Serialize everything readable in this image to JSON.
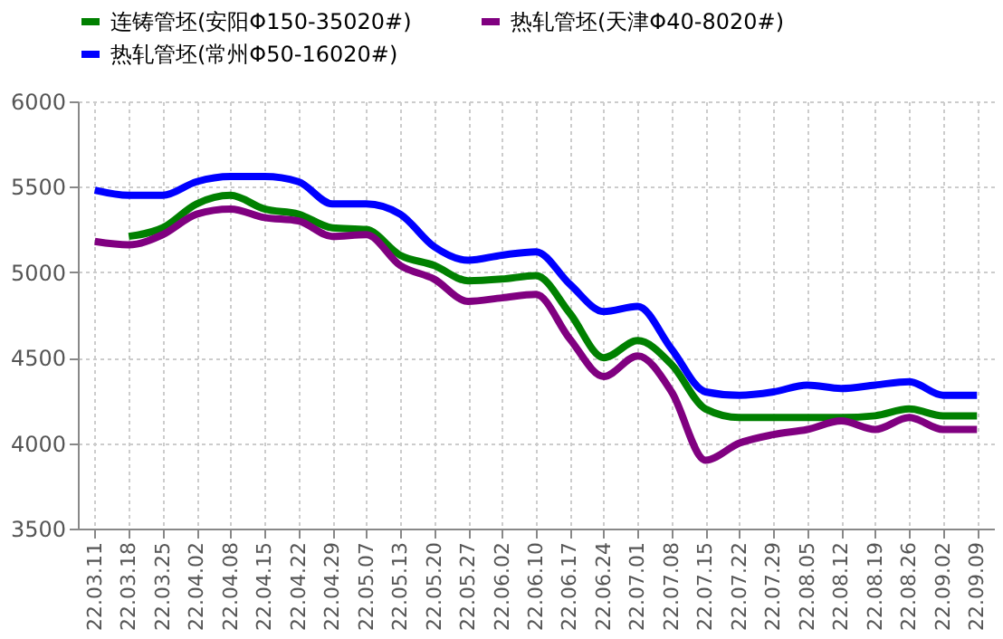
{
  "chart_data": {
    "type": "line",
    "categories": [
      "22.03.11",
      "22.03.18",
      "22.03.25",
      "22.04.02",
      "22.04.08",
      "22.04.15",
      "22.04.22",
      "22.04.29",
      "22.05.07",
      "22.05.13",
      "22.05.20",
      "22.05.27",
      "22.06.02",
      "22.06.10",
      "22.06.17",
      "22.06.24",
      "22.07.01",
      "22.07.08",
      "22.07.15",
      "22.07.22",
      "22.07.29",
      "22.08.05",
      "22.08.12",
      "22.08.19",
      "22.08.26",
      "22.09.02",
      "22.09.09"
    ],
    "series": [
      {
        "name": "连铸管坯(安阳Φ150-35020#)",
        "color": "#008000",
        "values": [
          null,
          5210,
          5260,
          5400,
          5450,
          5370,
          5340,
          5260,
          5250,
          5100,
          5040,
          4950,
          4960,
          4980,
          4760,
          4500,
          4600,
          4460,
          4200,
          4150,
          4150,
          4150,
          4150,
          4160,
          4200,
          4160,
          4160
        ]
      },
      {
        "name": "热轧管坯(天津Φ40-8020#)",
        "color": "#800080",
        "values": [
          5180,
          5160,
          5220,
          5340,
          5370,
          5320,
          5300,
          5210,
          5220,
          5040,
          4960,
          4830,
          4850,
          4870,
          4610,
          4390,
          4510,
          4300,
          3900,
          4000,
          4050,
          4080,
          4130,
          4080,
          4150,
          4080,
          4080
        ]
      },
      {
        "name": "热轧管坯(常州Φ50-16020#)",
        "color": "#0000ff",
        "values": [
          5480,
          5450,
          5450,
          5530,
          5560,
          5560,
          5530,
          5400,
          5400,
          5340,
          5150,
          5070,
          5100,
          5120,
          4930,
          4770,
          4800,
          4550,
          4300,
          4280,
          4300,
          4340,
          4320,
          4340,
          4360,
          4280,
          4280
        ]
      }
    ],
    "ylim": [
      3500,
      6000
    ],
    "yticks": [
      3500,
      4000,
      4500,
      5000,
      5500,
      6000
    ],
    "grid": true,
    "legend": "top",
    "line_style": "solid",
    "marker": "none"
  }
}
